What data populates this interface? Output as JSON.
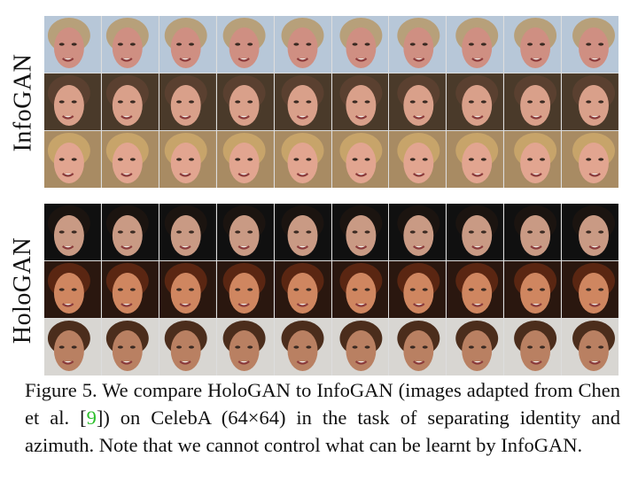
{
  "figure": {
    "blocks": [
      {
        "label": "InfoGAN",
        "rows": [
          {
            "name": "identity-1",
            "bg": "#b7c7d8",
            "skin": "#cf8f82",
            "hair": "#b7a07a",
            "cols": 10
          },
          {
            "name": "identity-2",
            "bg": "#4a3a2a",
            "skin": "#d9a08a",
            "hair": "#5a4030",
            "cols": 10
          },
          {
            "name": "identity-3",
            "bg": "#a88b63",
            "skin": "#e2a590",
            "hair": "#c7a46a",
            "cols": 10
          }
        ]
      },
      {
        "label": "HoloGAN",
        "rows": [
          {
            "name": "identity-1",
            "bg": "#101010",
            "skin": "#c99a84",
            "hair": "#1b1410",
            "cols": 10
          },
          {
            "name": "identity-2",
            "bg": "#2a170f",
            "skin": "#cf8660",
            "hair": "#5a2612",
            "cols": 10
          },
          {
            "name": "identity-3",
            "bg": "#d8d6d2",
            "skin": "#b98062",
            "hair": "#4b2d1c",
            "cols": 10
          }
        ]
      }
    ],
    "caption": {
      "prefix": "Figure 5. We compare HoloGAN to InfoGAN (images adapted from Chen et al. [",
      "ref": "9",
      "suffix": "]) on CelebA (64×64) in the task of separating identity and azimuth. Note that we cannot control what can be learnt by InfoGAN."
    }
  }
}
